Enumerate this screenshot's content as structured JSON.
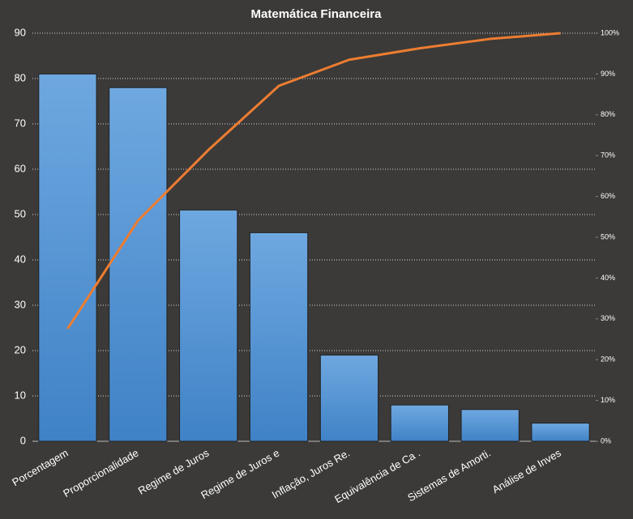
{
  "chart_data": {
    "type": "pareto",
    "title": "Matemática  Financeira",
    "categories": [
      "Porcentagem",
      "Proporcionalidade",
      "Regime de Juros",
      "Regime de Juros e",
      "Inflação, Juros Re.",
      "Equivalência de Ca .",
      "Sistemas de Amorti.",
      "Análise de Inves"
    ],
    "series": [
      {
        "type": "bar",
        "color": "#4a90d6",
        "values": [
          81,
          78,
          51,
          46,
          19,
          8,
          7,
          4
        ]
      },
      {
        "type": "line",
        "color": "#ed7d31",
        "axis": "y2",
        "values": [
          27.6,
          54.1,
          71.4,
          87.1,
          93.5,
          96.3,
          98.6,
          100
        ]
      }
    ],
    "ylim": [
      0,
      90
    ],
    "yticks": [
      0,
      10,
      20,
      30,
      40,
      50,
      60,
      70,
      80,
      90
    ],
    "y2lim": [
      0,
      100
    ],
    "y2ticks": [
      {
        "value": 0,
        "label": "0%"
      },
      {
        "value": 10,
        "label": "10%"
      },
      {
        "value": 20,
        "label": "20%"
      },
      {
        "value": 30,
        "label": "30%"
      },
      {
        "value": 40,
        "label": "40%"
      },
      {
        "value": 50,
        "label": "50%"
      },
      {
        "value": 60,
        "label": "60%"
      },
      {
        "value": 70,
        "label": "70%"
      },
      {
        "value": 80,
        "label": "80%"
      },
      {
        "value": 90,
        "label": "90%"
      },
      {
        "value": 100,
        "label": "100%"
      }
    ],
    "grid": true
  }
}
